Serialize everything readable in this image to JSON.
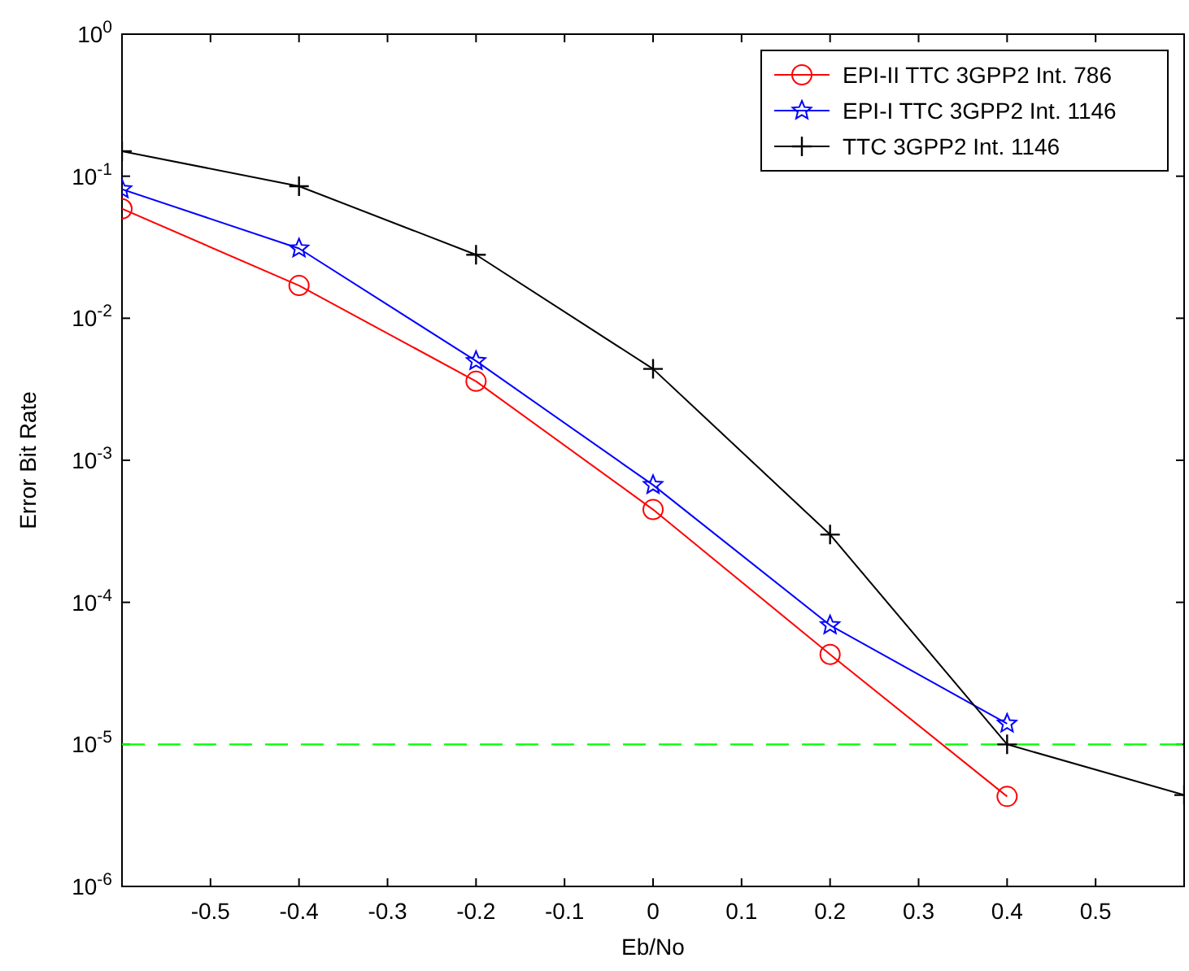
{
  "chart_data": {
    "type": "line",
    "xlabel": "Eb/No",
    "ylabel": "Error Bit Rate",
    "log": "y",
    "xlim": [
      -0.6,
      0.6
    ],
    "xticks": [
      -0.5,
      -0.4,
      -0.3,
      -0.2,
      -0.1,
      0,
      0.1,
      0.2,
      0.3,
      0.4,
      0.5
    ],
    "ylim": [
      1e-06,
      1
    ],
    "yticks": [
      {
        "value": 1e-06,
        "label": "10$^{-6}$"
      },
      {
        "value": 1e-05,
        "label": "10$^{-5}$"
      },
      {
        "value": 0.0001,
        "label": "10$^{-4}$"
      },
      {
        "value": 0.001,
        "label": "10$^{-3}$"
      },
      {
        "value": 0.01,
        "label": "10$^{-2}$"
      },
      {
        "value": 0.1,
        "label": "10$^{-1}$"
      },
      {
        "value": 1,
        "label": "10$^{0}$"
      }
    ],
    "grid": false,
    "legend": "top right",
    "line_style": "solid",
    "series": [
      {
        "name": "EPI-II TTC 3GPP2 Int. 786",
        "color": "#ff0000",
        "marker": "circle",
        "x": [
          -0.6,
          -0.4,
          -0.2,
          0,
          0.2,
          0.4
        ],
        "values": [
          0.059,
          0.017,
          0.0036,
          0.00045,
          4.3e-05,
          4.3e-06
        ]
      },
      {
        "name": "EPI-I TTC 3GPP2 Int. 1146",
        "color": "#0000ff",
        "marker": "star",
        "x": [
          -0.6,
          -0.4,
          -0.2,
          0,
          0.2,
          0.4
        ],
        "values": [
          0.081,
          0.031,
          0.005,
          0.00067,
          6.9e-05,
          1.4e-05
        ]
      },
      {
        "name": "TTC 3GPP2 Int. 1146",
        "color": "#000000",
        "marker": "cross",
        "x": [
          -0.6,
          -0.4,
          -0.2,
          0,
          0.2,
          0.4,
          0.6
        ],
        "values": [
          0.15,
          0.085,
          0.028,
          0.0044,
          0.0003,
          1e-05,
          4.4e-06
        ]
      }
    ],
    "ref_lines": [
      {
        "axis": "y",
        "value": 1e-05,
        "color": "#00ff00",
        "line_style": "dashed"
      }
    ]
  }
}
